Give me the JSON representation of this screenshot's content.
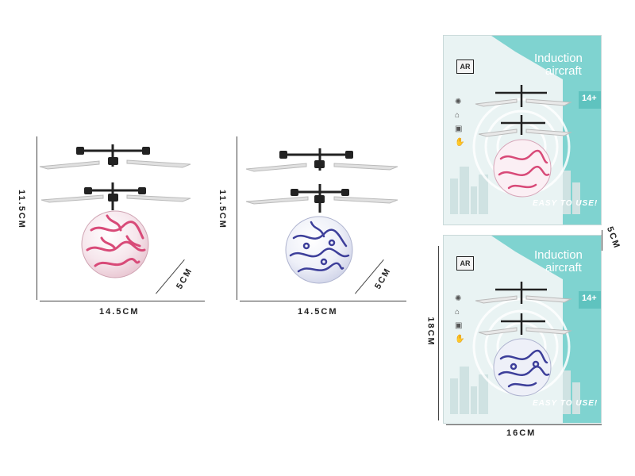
{
  "products": [
    {
      "name": "pink-ball",
      "color": "#d84a78",
      "height_label": "11.5CM",
      "width_label": "14.5CM",
      "depth_label": "5CM"
    },
    {
      "name": "blue-ball",
      "color": "#3d3f9a",
      "height_label": "11.5CM",
      "width_label": "14.5CM",
      "depth_label": "5CM"
    }
  ],
  "package": {
    "title_line1": "Induction",
    "title_line2": "aircraft",
    "age_badge": "14+",
    "slogan": "EASY TO USE!",
    "logo_text": "AR",
    "height_label": "18CM",
    "width_label": "16CM",
    "depth_label": "5CM",
    "accent_color": "#7fd3d0"
  }
}
